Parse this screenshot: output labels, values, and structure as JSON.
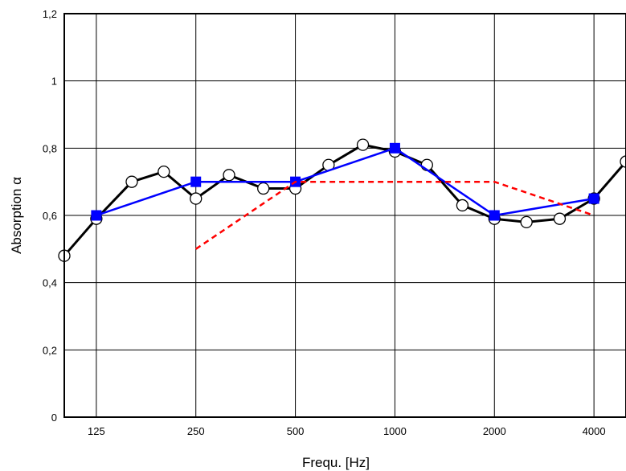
{
  "chart_data": {
    "type": "line",
    "title": "",
    "xlabel": "Frequ. [Hz]",
    "ylabel": "Absorption α",
    "x_scale": "log",
    "xlim": [
      100,
      5000
    ],
    "ylim": [
      0,
      1.2
    ],
    "grid": true,
    "legend": "none",
    "x_ticks": [
      {
        "value": 125,
        "label": "125"
      },
      {
        "value": 250,
        "label": "250"
      },
      {
        "value": 500,
        "label": "500"
      },
      {
        "value": 1000,
        "label": "1000"
      },
      {
        "value": 2000,
        "label": "2000"
      },
      {
        "value": 4000,
        "label": "4000"
      }
    ],
    "y_ticks": [
      {
        "value": 0,
        "label": "0"
      },
      {
        "value": 0.2,
        "label": "0,2"
      },
      {
        "value": 0.4,
        "label": "0,4"
      },
      {
        "value": 0.6,
        "label": "0,6"
      },
      {
        "value": 0.8,
        "label": "0,8"
      },
      {
        "value": 1.0,
        "label": "1"
      },
      {
        "value": 1.2,
        "label": "1,2"
      }
    ],
    "series": [
      {
        "marker": "circle",
        "color": "#000000",
        "line_style": "solid",
        "x": [
          100,
          125,
          160,
          200,
          250,
          315,
          400,
          500,
          630,
          800,
          1000,
          1250,
          1600,
          2000,
          2500,
          3150,
          4000,
          5000
        ],
        "values": [
          0.48,
          0.59,
          0.7,
          0.73,
          0.65,
          0.72,
          0.68,
          0.68,
          0.75,
          0.81,
          0.79,
          0.75,
          0.63,
          0.59,
          0.58,
          0.59,
          0.65,
          0.76
        ]
      },
      {
        "marker": "square",
        "color": "#0000ff",
        "line_style": "solid",
        "x": [
          125,
          250,
          500,
          1000,
          2000,
          4000
        ],
        "values": [
          0.6,
          0.7,
          0.7,
          0.8,
          0.6,
          0.65
        ]
      },
      {
        "marker": "none",
        "color": "#ff0000",
        "line_style": "dashed",
        "x": [
          250,
          500,
          1000,
          2000,
          4000
        ],
        "values": [
          0.5,
          0.7,
          0.7,
          0.7,
          0.6
        ]
      }
    ]
  }
}
